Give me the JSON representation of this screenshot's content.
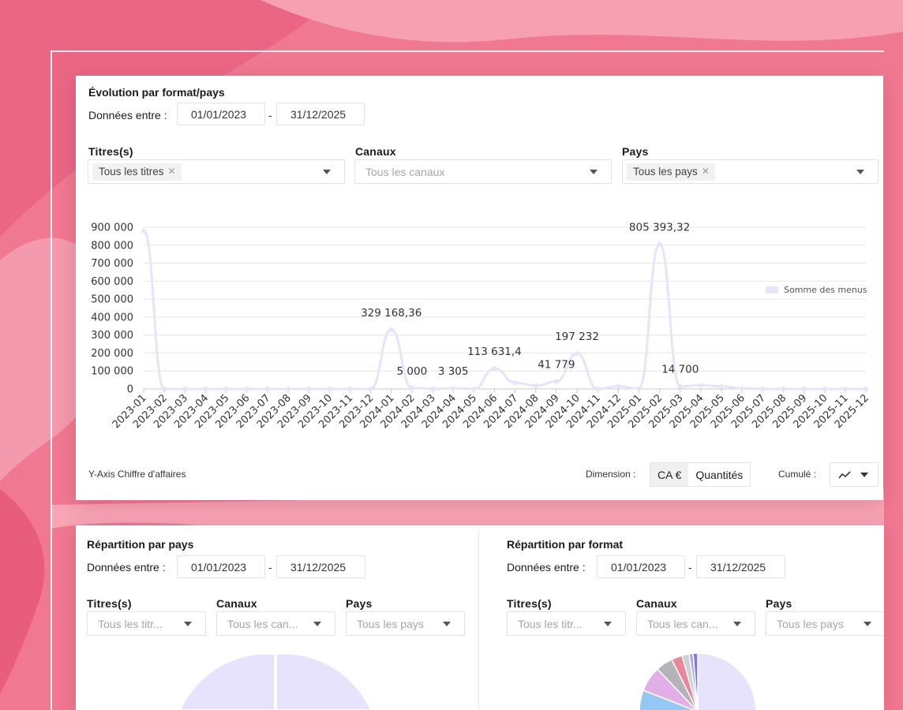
{
  "colors": {
    "accent": "#e7e3fc",
    "background": "#f07891"
  },
  "evolution": {
    "title": "Évolution par format/pays",
    "dates_label": "Données entre :",
    "date_from": "01/01/2023",
    "date_sep": "-",
    "date_to": "31/12/2025",
    "titres_label": "Titres(s)",
    "titres_tag": "Tous les titres",
    "canaux_label": "Canaux",
    "canaux_placeholder": "Tous les canaux",
    "pays_label": "Pays",
    "pays_tag": "Tous les pays",
    "y_axis_label": "Y-Axis Chiffre d'affaires",
    "dimension_label": "Dimension :",
    "dimension_ca": "CA €",
    "dimension_qty": "Quantités",
    "cumule_label": "Cumulé :"
  },
  "chart_data": {
    "type": "line",
    "legend": "Somme des menus",
    "legend_position": "top-right",
    "ylim": [
      0,
      900000
    ],
    "y_ticks": [
      "0",
      "100 000",
      "200 000",
      "300 000",
      "400 000",
      "500 000",
      "600 000",
      "700 000",
      "800 000",
      "900 000"
    ],
    "categories": [
      "2023-01",
      "2023-02",
      "2023-03",
      "2023-04",
      "2023-05",
      "2023-06",
      "2023-07",
      "2023-08",
      "2023-09",
      "2023-10",
      "2023-11",
      "2023-12",
      "2024-01",
      "2024-02",
      "2024-03",
      "2024-04",
      "2024-05",
      "2024-06",
      "2024-07",
      "2024-08",
      "2024-09",
      "2024-10",
      "2024-11",
      "2024-12",
      "2025-01",
      "2025-02",
      "2025-03",
      "2025-04",
      "2025-05",
      "2025-06",
      "2025-07",
      "2025-08",
      "2025-09",
      "2025-10",
      "2025-11",
      "2025-12"
    ],
    "series": [
      {
        "name": "Somme des menus",
        "values": [
          880000,
          0,
          0,
          0,
          0,
          0,
          0,
          0,
          0,
          0,
          0,
          0,
          329168.36,
          5000,
          0,
          3305,
          0,
          113631.4,
          35000,
          18000,
          41779,
          197232,
          0,
          15000,
          2000,
          805393.32,
          14700,
          20000,
          15000,
          3000,
          0,
          0,
          0,
          0,
          0,
          0
        ]
      }
    ],
    "data_labels": [
      {
        "index": 12,
        "text": "329 168,36"
      },
      {
        "index": 13,
        "text": "5 000"
      },
      {
        "index": 15,
        "text": "3 305"
      },
      {
        "index": 17,
        "text": "113 631,4"
      },
      {
        "index": 20,
        "text": "41 779"
      },
      {
        "index": 21,
        "text": "197 232"
      },
      {
        "index": 25,
        "text": "805 393,32"
      },
      {
        "index": 26,
        "text": "14 700"
      }
    ]
  },
  "repartition_pays": {
    "title": "Répartition par pays",
    "dates_label": "Données entre :",
    "date_from": "01/01/2023",
    "date_sep": "-",
    "date_to": "31/12/2025",
    "titres_label": "Titres(s)",
    "titres_placeholder": "Tous les titr...",
    "canaux_label": "Canaux",
    "canaux_placeholder": "Tous les can...",
    "pays_label": "Pays",
    "pays_placeholder": "Tous les pays"
  },
  "repartition_format": {
    "title": "Répartition par format",
    "dates_label": "Données entre :",
    "date_from": "01/01/2023",
    "date_sep": "-",
    "date_to": "31/12/2025",
    "titres_label": "Titres(s)",
    "titres_placeholder": "Tous les titr...",
    "canaux_label": "Canaux",
    "canaux_placeholder": "Tous les can...",
    "pays_label": "Pays",
    "pays_placeholder": "Tous les pays"
  }
}
